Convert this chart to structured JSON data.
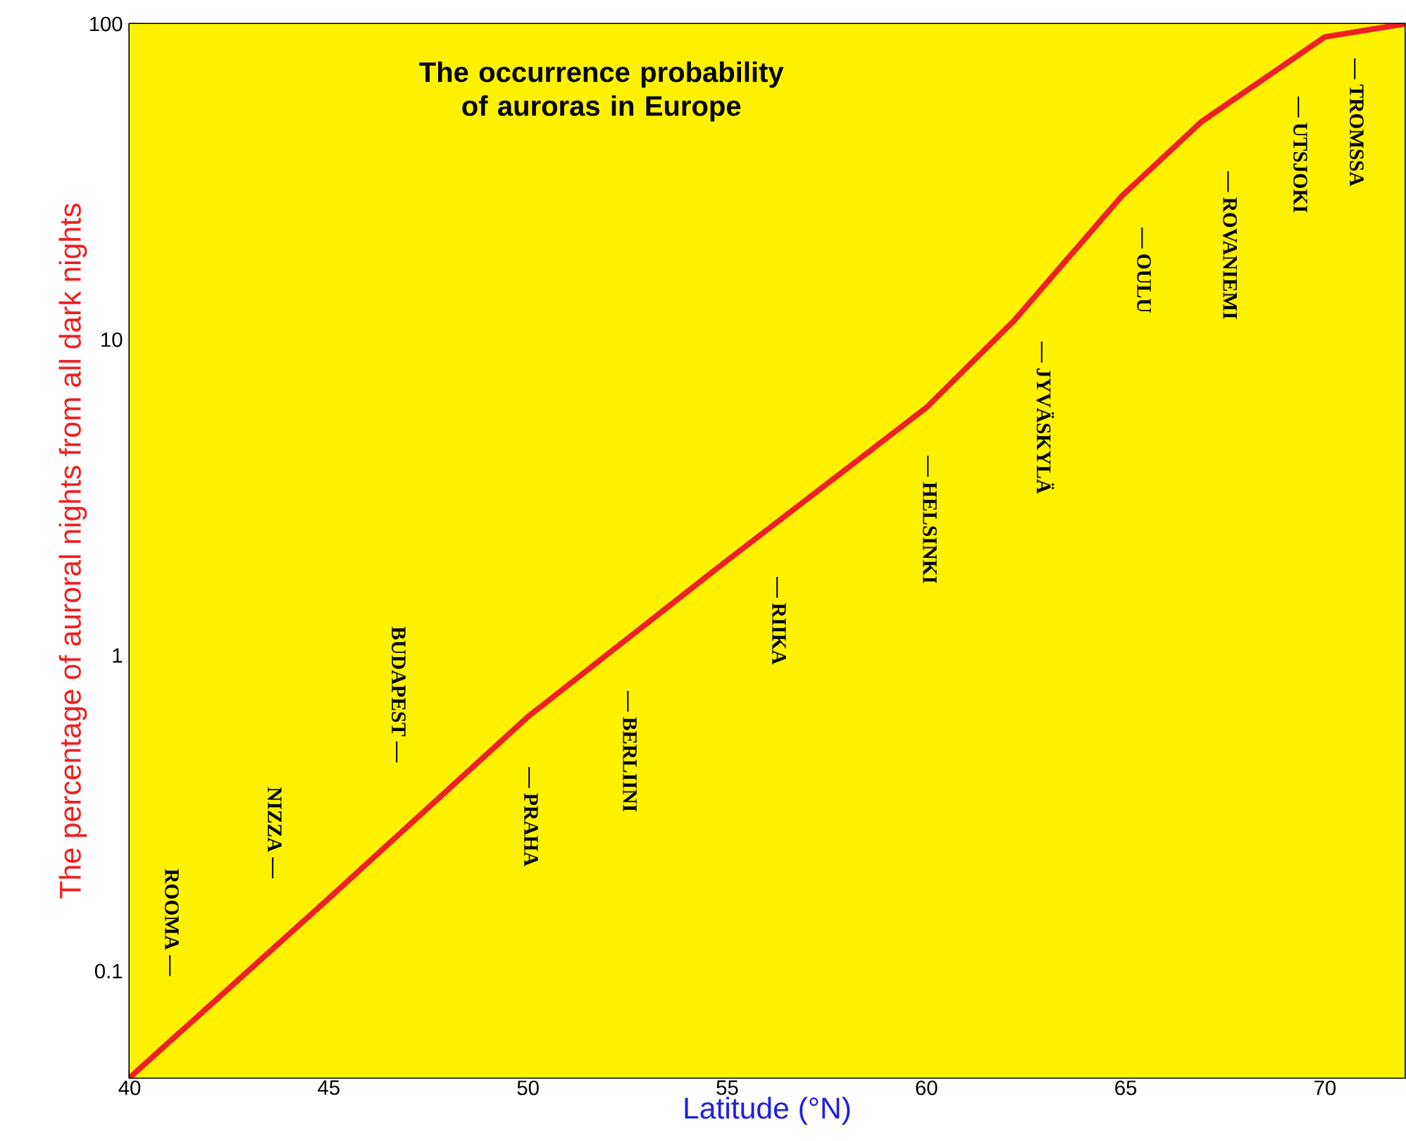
{
  "chart_data": {
    "type": "line",
    "title": "The occurrence probability of auroras in Europe",
    "xlabel": "Latitude (°N)",
    "ylabel": "The percentage of auroral nights from all dark nights",
    "x": [
      40,
      45,
      50,
      55,
      60,
      62.2,
      64.9,
      66.9,
      70,
      72
    ],
    "series": [
      {
        "color": "#ee2020",
        "values": [
          0.046,
          0.17,
          0.64,
          2.0,
          6.1,
          11.5,
          28.5,
          49,
          91,
          100
        ]
      }
    ],
    "xlim": [
      40,
      72
    ],
    "ylim": [
      0.046,
      100
    ],
    "xticks": [
      40,
      45,
      50,
      55,
      60,
      65,
      70
    ],
    "yticks": [
      0.1,
      1,
      10,
      100
    ],
    "log": "y",
    "annotations": [
      "ROOMA —",
      "NIZZA —",
      "BUDAPEST —",
      "— PRAHA",
      "— BERLIINI",
      "— RIIKA",
      "— HELSINKI",
      "— JYVÄSKYLÄ",
      "— OULU",
      "— ROVANIEMI",
      "— UTSJOKI",
      "— TROMSSA"
    ]
  }
}
